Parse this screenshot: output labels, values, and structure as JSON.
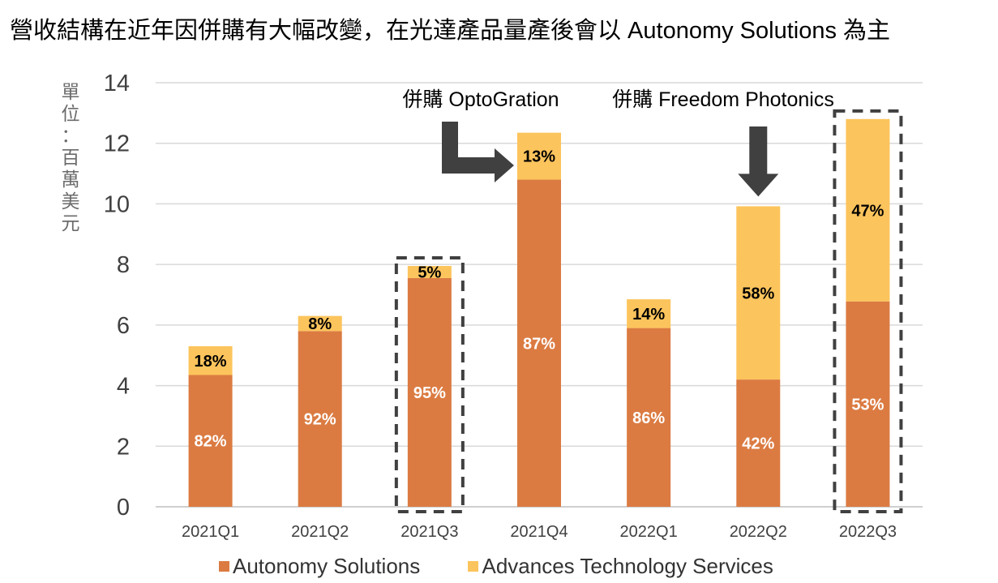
{
  "chart_data": {
    "type": "bar",
    "stacked": true,
    "title": "營收結構在近年因併購有大幅改變，在光達產品量產後會以 Autonomy Solutions 為主",
    "ylabel": "單位：百萬美元",
    "ylabel_chars": [
      "單",
      "位",
      "：",
      "百",
      "萬",
      "美",
      "元"
    ],
    "ylim": [
      0,
      14
    ],
    "yticks": [
      0,
      2,
      4,
      6,
      8,
      10,
      12,
      14
    ],
    "categories": [
      "2021Q1",
      "2021Q2",
      "2021Q3",
      "2021Q4",
      "2022Q1",
      "2022Q2",
      "2022Q3"
    ],
    "totals": [
      5.3,
      6.3,
      7.95,
      12.35,
      6.85,
      9.92,
      12.8
    ],
    "series": [
      {
        "name": "Autonomy Solutions",
        "color": "#db7b42",
        "values": [
          4.35,
          5.8,
          7.55,
          10.8,
          5.9,
          4.2,
          6.78
        ],
        "labels": [
          "82%",
          "92%",
          "95%",
          "87%",
          "86%",
          "42%",
          "53%"
        ]
      },
      {
        "name": "Advances Technology Services",
        "color": "#fcc45c",
        "values": [
          0.95,
          0.5,
          0.4,
          1.55,
          0.95,
          5.72,
          6.02
        ],
        "labels": [
          "18%",
          "8%",
          "5%",
          "13%",
          "14%",
          "58%",
          "47%"
        ]
      }
    ],
    "annotations": [
      {
        "text": "併購 OptoGration",
        "category": "2021Q4"
      },
      {
        "text": "併購 Freedom Photonics",
        "category": "2022Q2"
      }
    ],
    "highlighted": [
      "2021Q3",
      "2022Q3"
    ],
    "legend_position": "bottom",
    "grid": true
  }
}
